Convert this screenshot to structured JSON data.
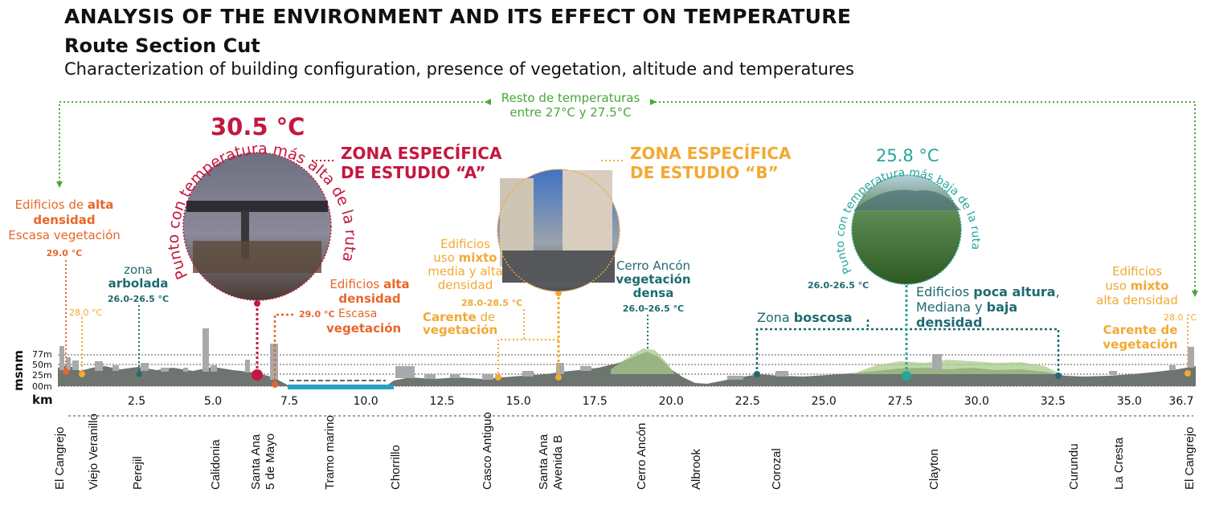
{
  "header": {
    "title": "ANALYSIS OF THE ENVIRONMENT AND ITS EFFECT ON TEMPERATURE",
    "subtitle": "Route Section Cut",
    "description": "Characterization of building configuration, presence of vegetation, altitude and temperatures"
  },
  "rest_temps": {
    "line1": "Resto de temperaturas",
    "line2": "entre 27°C y 27.5°C"
  },
  "hot_point": {
    "temp": "30.5 °C",
    "arc_text": "Punto con temperatura más alta de la ruta",
    "zone_line1": "ZONA ESPECÍFICA",
    "zone_line2": "DE ESTUDIO “A”"
  },
  "zone_b": {
    "line1": "ZONA ESPECÍFICA",
    "line2": "DE ESTUDIO “B”"
  },
  "cold_point": {
    "temp": "25.8 °C",
    "arc_text": "Punto con temperatura más baja de la ruta"
  },
  "annotations": {
    "left_buildings": {
      "l1a": "Edificios de ",
      "l1b": "alta",
      "l2": "densidad",
      "l3": "Escasa vegetación",
      "temp": "29.0 °C",
      "temp2": "28.0 °C"
    },
    "zona_arbolada": {
      "l1": "zona",
      "l2": "arbolada",
      "temp": "26.0-26.5 °C"
    },
    "santa_ana": {
      "l1a": "Edificios ",
      "l1b": "alta",
      "l2": "densidad",
      "temp": "29.0 °C",
      "l3": "Escasa",
      "l4": "vegetación"
    },
    "mixed": {
      "l1": "Edificios",
      "l2a": "uso ",
      "l2b": "mixto",
      "l3": "media y alta",
      "l4": "densidad",
      "temp": "28.0-28.5 °C",
      "l5a": "Carente",
      "l5b": " de",
      "l6": "vegetación"
    },
    "cerro": {
      "l1": "Cerro Ancón",
      "l2": "vegetación",
      "l3": "densa",
      "temp": "26.0-26.5 °C"
    },
    "boscosa": {
      "l1a": "Zona ",
      "l1b": "boscosa",
      "temp": "26.0-26.5 °C"
    },
    "clayton": {
      "l1a": "Edificios ",
      "l1b": "poca altura",
      "l1c": ",",
      "l2a": "Mediana y ",
      "l2b": "baja",
      "l3": "densidad"
    },
    "right_mixed": {
      "l1": "Edificios",
      "l2a": "uso ",
      "l2b": "mixto",
      "l3": "alta densidad",
      "temp": "28.0 °C",
      "l4": "Carente de",
      "l5": "vegetación"
    }
  },
  "chart_data": {
    "type": "area",
    "title": "Route Section Cut",
    "xlabel": "km",
    "ylabel": "msnm",
    "y_ticks": [
      "77m",
      "50m",
      "25m",
      "00m"
    ],
    "x_ticks": [
      "2.5",
      "5.0",
      "7.5",
      "10.0",
      "12.5",
      "15.0",
      "17.5",
      "20.0",
      "22.5",
      "25.0",
      "27.5",
      "30.0",
      "32.5",
      "35.0",
      "36.7"
    ],
    "xlim": [
      0,
      36.7
    ],
    "ylim": [
      0,
      77
    ],
    "places": [
      "El Cangrejo",
      "Viejo Veranillo",
      "Perejil",
      "Calidonia",
      "Santa Ana",
      "5 de Mayo",
      "Tramo marino",
      "Chorrillo",
      "Casco Antiguo",
      "Santa Ana",
      "Avenida B",
      "Cerro Ancón",
      "Albrook",
      "Corozal",
      "Clayton",
      "Curundu",
      "La Cresta",
      "El Cangrejo"
    ],
    "highlights": [
      {
        "label": "Punto con temperatura más alta",
        "km": 6.3,
        "temp_c": 30.5
      },
      {
        "label": "Punto con temperatura más baja",
        "km": 27.3,
        "temp_c": 25.8
      }
    ]
  },
  "colors": {
    "red": "#c4173f",
    "orange": "#e8662a",
    "yellow": "#f2a933",
    "teal": "#1e6b71",
    "cyan": "#25a69b",
    "green": "#4aa63a"
  }
}
